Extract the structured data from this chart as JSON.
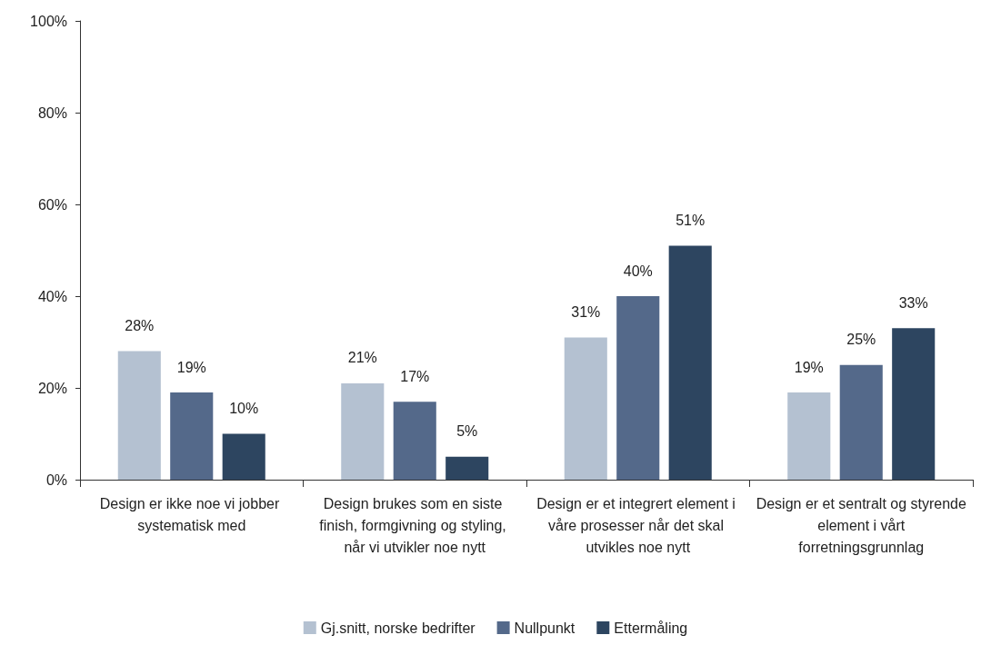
{
  "chart_data": {
    "type": "bar",
    "categories": [
      "Design er ikke noe vi jobber systematisk med",
      "Design brukes som en siste finish, formgivning og styling, når vi utvikler noe nytt",
      "Design er et integrert element i våre prosesser når det skal utvikles noe nytt",
      "Design er et sentralt og styrende element i vårt forretningsgrunnlag"
    ],
    "series": [
      {
        "name": "Gj.snitt, norske bedrifter",
        "color": "#b4c1d1",
        "values": [
          28,
          21,
          31,
          19
        ],
        "value_labels": [
          "28%",
          "21%",
          "31%",
          "19%"
        ]
      },
      {
        "name": "Nullpunkt",
        "color": "#54698a",
        "values": [
          19,
          17,
          40,
          25
        ],
        "value_labels": [
          "19%",
          "17%",
          "40%",
          "25%"
        ]
      },
      {
        "name": "Ettermåling",
        "color": "#2d4560",
        "values": [
          10,
          5,
          51,
          33
        ],
        "value_labels": [
          "10%",
          "5%",
          "51%",
          "33%"
        ]
      }
    ],
    "ylim": [
      0,
      100
    ],
    "yticks": [
      {
        "value": 0,
        "label": "0%"
      },
      {
        "value": 20,
        "label": "20%"
      },
      {
        "value": 40,
        "label": "40%"
      },
      {
        "value": 60,
        "label": "60%"
      },
      {
        "value": 80,
        "label": "80%"
      },
      {
        "value": 100,
        "label": "100%"
      }
    ],
    "grid": false,
    "legend": "bottom"
  }
}
